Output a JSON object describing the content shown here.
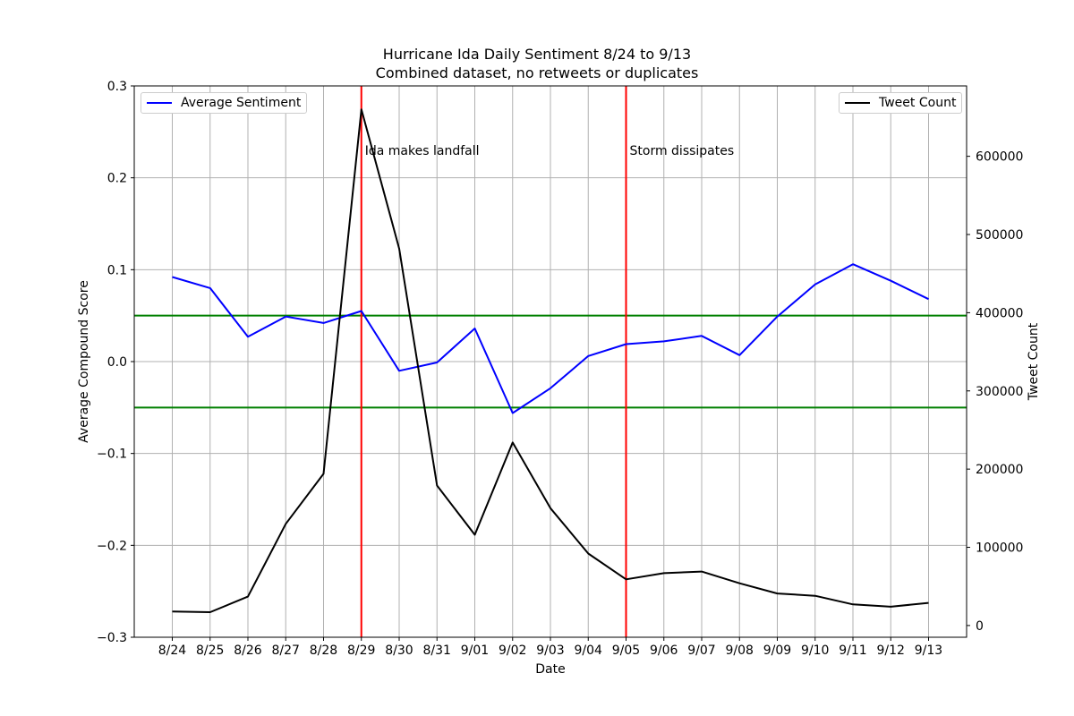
{
  "chart_data": {
    "type": "line",
    "title": "Hurricane Ida Daily Sentiment 8/24 to 9/13",
    "subtitle": "Combined dataset, no retweets or duplicates",
    "xlabel": "Date",
    "ylabel_left": "Average Compound Score",
    "ylabel_right": "Tweet Count",
    "categories": [
      "8/24",
      "8/25",
      "8/26",
      "8/27",
      "8/28",
      "8/29",
      "8/30",
      "8/31",
      "9/01",
      "9/02",
      "9/03",
      "9/04",
      "9/05",
      "9/06",
      "9/07",
      "9/08",
      "9/09",
      "9/10",
      "9/11",
      "9/12",
      "9/13"
    ],
    "left_axis": {
      "ylim": [
        -0.3,
        0.3
      ],
      "ticks": [
        -0.3,
        -0.2,
        -0.1,
        0.0,
        0.1,
        0.2,
        0.3
      ],
      "tick_labels": [
        "−0.3",
        "−0.2",
        "−0.1",
        "0.0",
        "0.1",
        "0.2",
        "0.3"
      ]
    },
    "right_axis": {
      "ylim": [
        -15000,
        690000
      ],
      "ticks": [
        0,
        100000,
        200000,
        300000,
        400000,
        500000,
        600000
      ],
      "tick_labels": [
        "0",
        "100000",
        "200000",
        "300000",
        "400000",
        "500000",
        "600000"
      ]
    },
    "grid": true,
    "series": [
      {
        "name": "Average Sentiment",
        "axis": "left",
        "color": "#0000ff",
        "values": [
          0.092,
          0.08,
          0.027,
          0.049,
          0.042,
          0.055,
          -0.01,
          -0.001,
          0.036,
          -0.056,
          -0.029,
          0.006,
          0.019,
          0.022,
          0.028,
          0.007,
          0.049,
          0.084,
          0.106,
          0.088,
          0.068
        ]
      },
      {
        "name": "Tweet Count",
        "axis": "right",
        "color": "#000000",
        "values": [
          18000,
          17000,
          37000,
          130000,
          194000,
          660000,
          482000,
          179000,
          116000,
          234000,
          150000,
          92000,
          59000,
          67000,
          69000,
          54000,
          41000,
          38000,
          27000,
          24000,
          29000
        ]
      }
    ],
    "reference_lines": [
      {
        "axis": "left",
        "value": 0.05,
        "color": "#008000"
      },
      {
        "axis": "left",
        "value": -0.05,
        "color": "#008000"
      }
    ],
    "vertical_markers": [
      {
        "category": "8/29",
        "label": "Ida makes landfall",
        "color": "#ff0000"
      },
      {
        "category": "9/05",
        "label": "Storm dissipates",
        "color": "#ff0000"
      }
    ],
    "legends": [
      {
        "series": "Average Sentiment",
        "placement": "upper-left"
      },
      {
        "series": "Tweet Count",
        "placement": "upper-right"
      }
    ]
  }
}
